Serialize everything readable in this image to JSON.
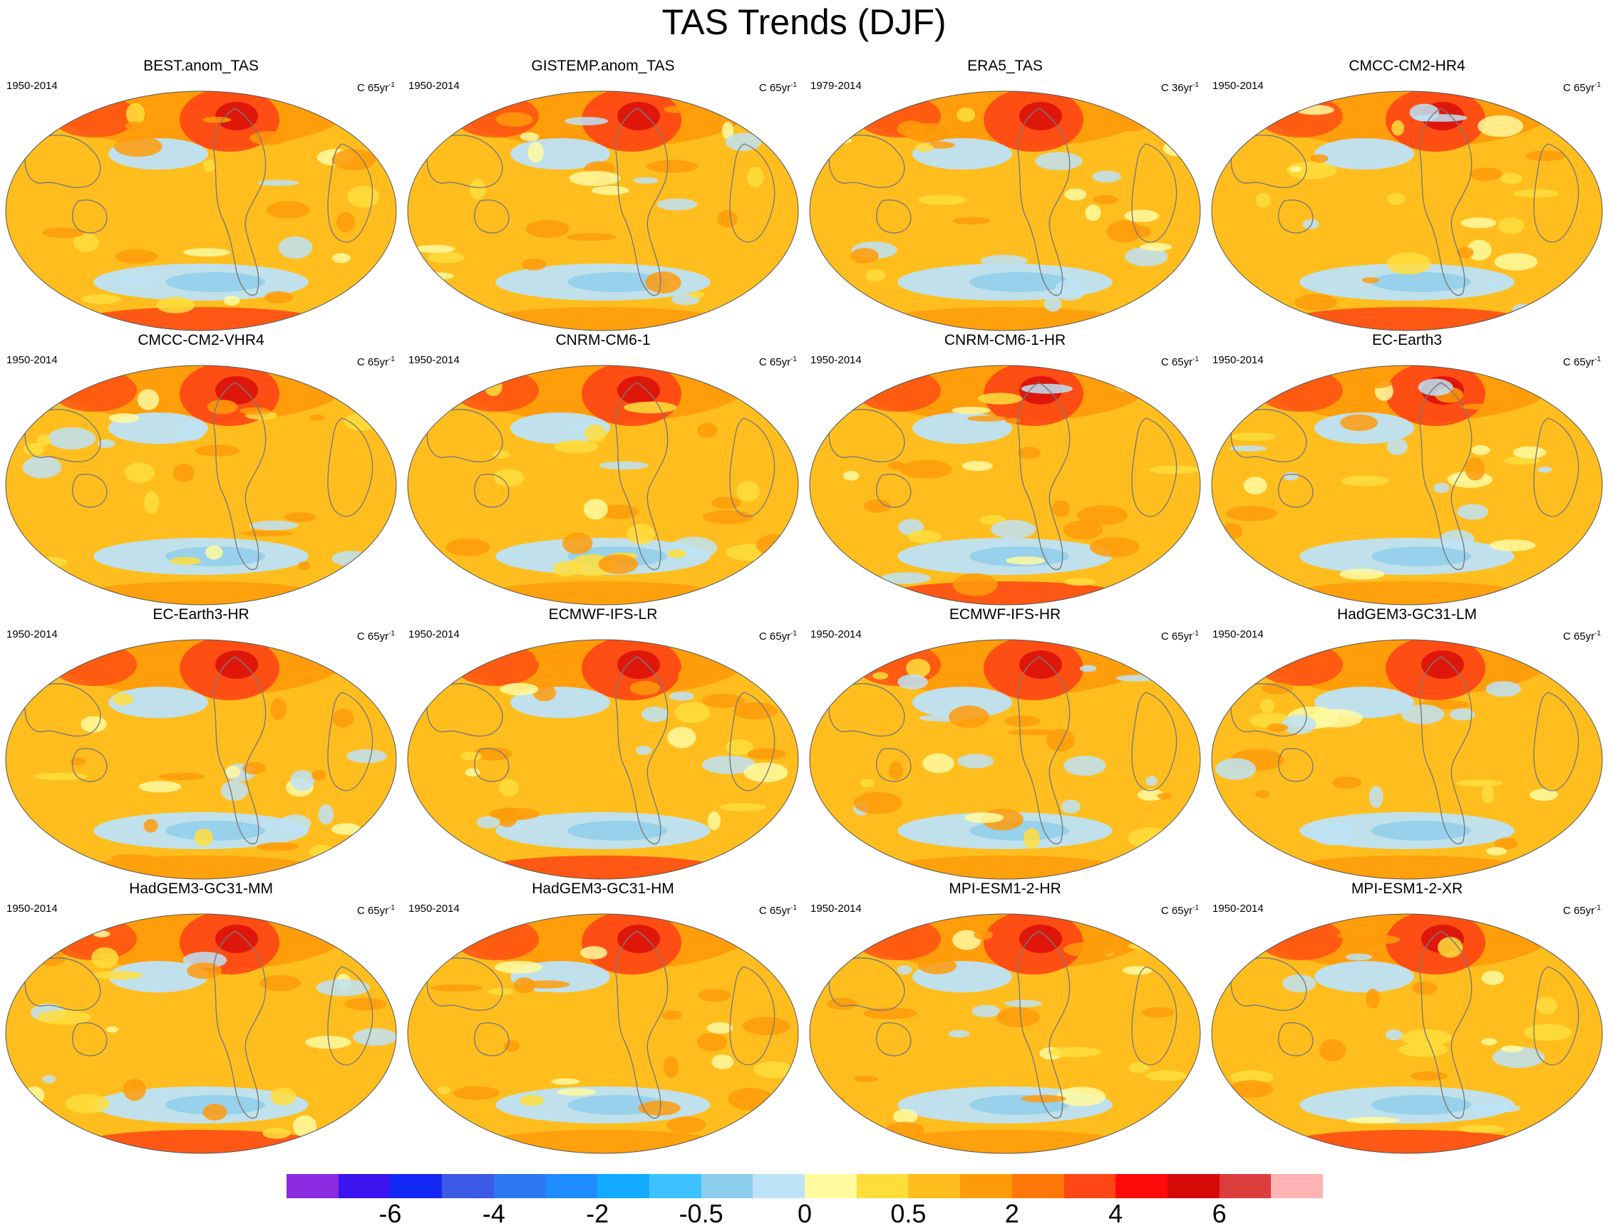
{
  "title": "TAS Trends (DJF)",
  "panels": [
    {
      "name": "BEST.anom_TAS",
      "period": "1950-2014",
      "units_prefix": "C 65yr",
      "units_exp": "-1"
    },
    {
      "name": "GISTEMP.anom_TAS",
      "period": "1950-2014",
      "units_prefix": "C 65yr",
      "units_exp": "-1"
    },
    {
      "name": "ERA5_TAS",
      "period": "1979-2014",
      "units_prefix": "C 36yr",
      "units_exp": "-1"
    },
    {
      "name": "CMCC-CM2-HR4",
      "period": "1950-2014",
      "units_prefix": "C 65yr",
      "units_exp": "-1"
    },
    {
      "name": "CMCC-CM2-VHR4",
      "period": "1950-2014",
      "units_prefix": "C 65yr",
      "units_exp": "-1"
    },
    {
      "name": "CNRM-CM6-1",
      "period": "1950-2014",
      "units_prefix": "C 65yr",
      "units_exp": "-1"
    },
    {
      "name": "CNRM-CM6-1-HR",
      "period": "1950-2014",
      "units_prefix": "C 65yr",
      "units_exp": "-1"
    },
    {
      "name": "EC-Earth3",
      "period": "1950-2014",
      "units_prefix": "C 65yr",
      "units_exp": "-1"
    },
    {
      "name": "EC-Earth3-HR",
      "period": "1950-2014",
      "units_prefix": "C 65yr",
      "units_exp": "-1"
    },
    {
      "name": "ECMWF-IFS-LR",
      "period": "1950-2014",
      "units_prefix": "C 65yr",
      "units_exp": "-1"
    },
    {
      "name": "ECMWF-IFS-HR",
      "period": "1950-2014",
      "units_prefix": "C 65yr",
      "units_exp": "-1"
    },
    {
      "name": "HadGEM3-GC31-LM",
      "period": "1950-2014",
      "units_prefix": "C 65yr",
      "units_exp": "-1"
    },
    {
      "name": "HadGEM3-GC31-MM",
      "period": "1950-2014",
      "units_prefix": "C 65yr",
      "units_exp": "-1"
    },
    {
      "name": "HadGEM3-GC31-HM",
      "period": "1950-2014",
      "units_prefix": "C 65yr",
      "units_exp": "-1"
    },
    {
      "name": "MPI-ESM1-2-HR",
      "period": "1950-2014",
      "units_prefix": "C 65yr",
      "units_exp": "-1"
    },
    {
      "name": "MPI-ESM1-2-XR",
      "period": "1950-2014",
      "units_prefix": "C 65yr",
      "units_exp": "-1"
    }
  ],
  "colorbar": {
    "colors": [
      "#8a2be2",
      "#3c14f0",
      "#1428f5",
      "#3c5ae6",
      "#2d78f0",
      "#1e8cff",
      "#14aaff",
      "#3cc3ff",
      "#8ccdeb",
      "#bde3f7",
      "#fffaa0",
      "#ffde3c",
      "#ffbe1e",
      "#ff9b0a",
      "#ff780a",
      "#ff4614",
      "#ff0a0a",
      "#d70a0a",
      "#dc3c3c",
      "#ffb4b4"
    ],
    "labels": [
      "-6",
      "-4",
      "-2",
      "-0.5",
      "0",
      "0.5",
      "2",
      "4",
      "6"
    ]
  },
  "map_colors": {
    "ocean_base": "#ffbe1e",
    "warm": "#ff9b0a",
    "hot": "#ff4614",
    "extreme": "#d70a0a",
    "cool": "#bde3f7",
    "cold": "#8ccdeb",
    "coast": "#7a7a7a"
  }
}
